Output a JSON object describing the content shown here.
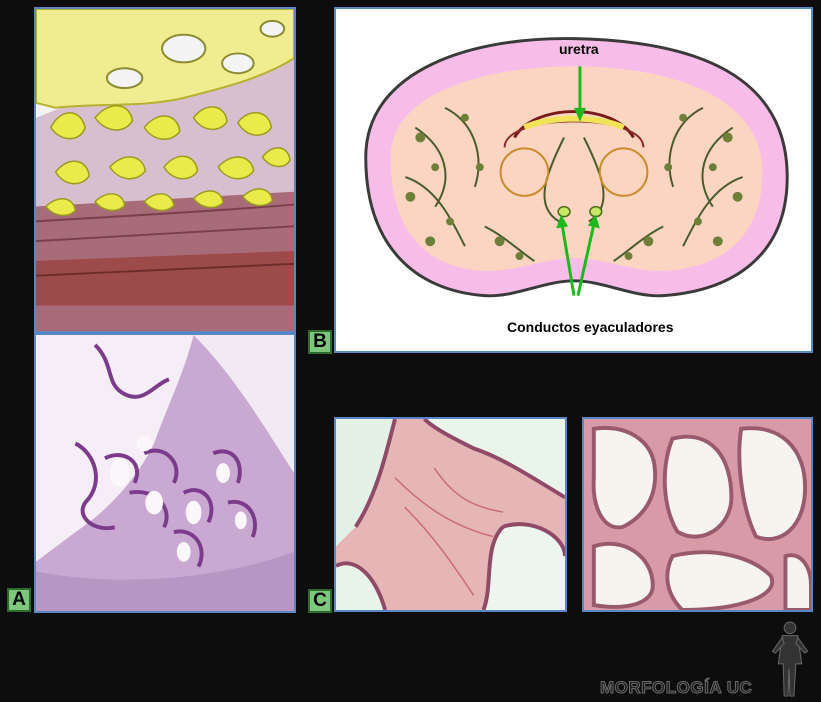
{
  "labels": {
    "a": "A",
    "b": "B",
    "c": "C"
  },
  "diagram": {
    "urethra": "uretra",
    "ducts": "Conductos eyaculadores"
  },
  "watermark": "MORFOLOGÍA UC",
  "colors": {
    "frame": "#5b86c4",
    "tag_fill": "#7dc67d",
    "arrow": "#1db81d",
    "glands": "#ece86a"
  }
}
